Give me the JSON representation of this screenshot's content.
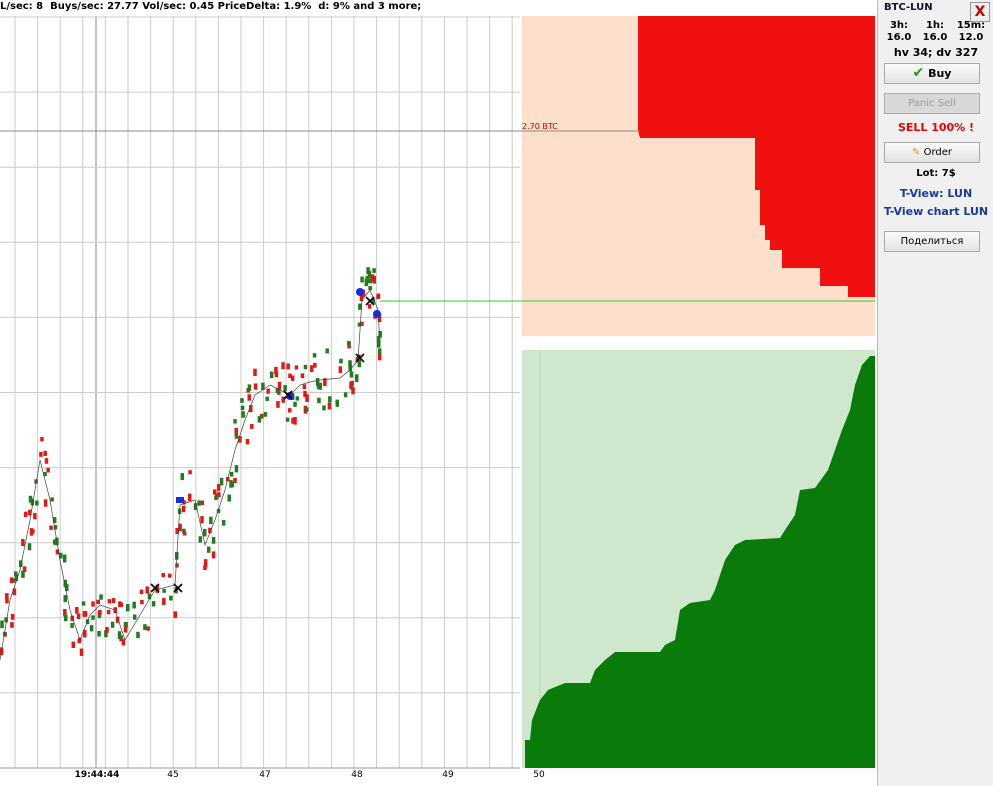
{
  "header": {
    "status": "L/sec: 8  Buys/sec: 27.77 Vol/sec: 0.45 PriceDelta: 1.9%  d: 9% and 3 more;"
  },
  "chart": {
    "x_labels": [
      "19:44:44",
      "45",
      "47",
      "48",
      "49",
      "50"
    ],
    "price_line_label": "2.70 BTC"
  },
  "panel": {
    "pair": "BTC-LUN",
    "close": "X",
    "periods": [
      {
        "label": "3h:",
        "value": "16.0"
      },
      {
        "label": "1h:",
        "value": "16.0"
      },
      {
        "label": "15m:",
        "value": "12.0"
      }
    ],
    "stats": "hv 34; dv 327",
    "buy": "Buy",
    "panic_sell": "Panic Sell",
    "sell_status": "SELL 100% !",
    "order": "Order",
    "lot": "Lot: 7$",
    "tview": "T-View: LUN",
    "tview_chart": "T-View chart LUN",
    "share": "Поделиться"
  }
}
